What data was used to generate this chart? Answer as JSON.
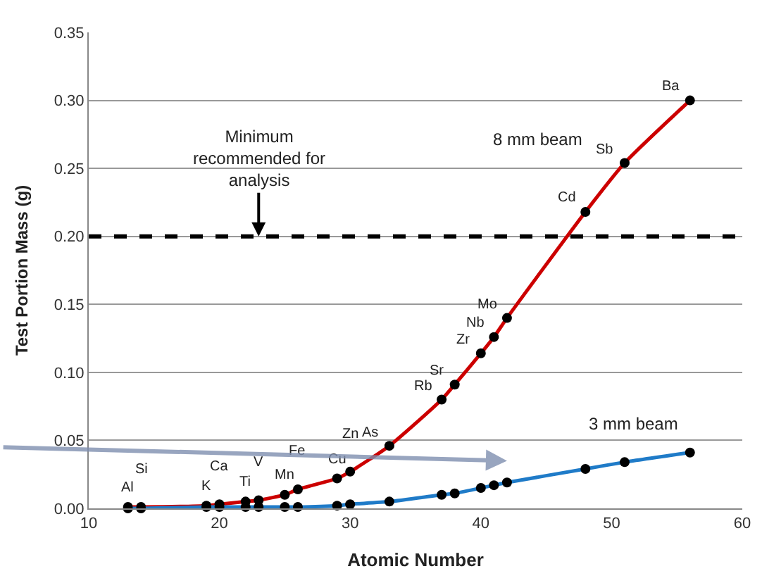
{
  "chart_data": {
    "type": "line",
    "xlabel": "Atomic Number",
    "ylabel": "Test Portion Mass (g)",
    "xlim": [
      10,
      60
    ],
    "xticks": [
      10,
      20,
      30,
      40,
      50,
      60
    ],
    "ylim": [
      0,
      0.35
    ],
    "yticks": [
      {
        "value": 0,
        "label": "0.00"
      },
      {
        "value": 0.05,
        "label": "0.05"
      },
      {
        "value": 0.1,
        "label": "0.10"
      },
      {
        "value": 0.15,
        "label": "0.15"
      },
      {
        "value": 0.2,
        "label": "0.20"
      },
      {
        "value": 0.25,
        "label": "0.25"
      },
      {
        "value": 0.3,
        "label": "0.30"
      },
      {
        "value": 0.35,
        "label": "0.35"
      }
    ],
    "x": [
      13,
      14,
      19,
      20,
      22,
      23,
      25,
      26,
      29,
      30,
      33,
      37,
      38,
      40,
      41,
      42,
      48,
      51,
      56
    ],
    "series": [
      {
        "name": "8 mm beam",
        "color": "#cc0000",
        "values": [
          0.001,
          0.001,
          0.002,
          0.003,
          0.005,
          0.006,
          0.01,
          0.014,
          0.022,
          0.027,
          0.046,
          0.08,
          0.091,
          0.114,
          0.126,
          0.14,
          0.218,
          0.254,
          0.3
        ],
        "value_labels": [
          "Al",
          "Si",
          "K",
          "Ca",
          "Ti",
          "V",
          "Mn",
          "Fe",
          "Cu",
          "Zn",
          "As",
          "Rb",
          "Sr",
          "Zr",
          "Nb",
          "Mo",
          "Cd",
          "Sb",
          "Ba"
        ]
      },
      {
        "name": "3 mm beam",
        "color": "#1f7bc8",
        "values": [
          0.0,
          0.0,
          0.001,
          0.001,
          0.001,
          0.001,
          0.001,
          0.001,
          0.002,
          0.003,
          0.005,
          0.01,
          0.011,
          0.015,
          0.017,
          0.019,
          0.029,
          0.034,
          0.041
        ]
      }
    ],
    "ref_lines": [
      {
        "axis": "y",
        "value": 0.2,
        "color": "#000000",
        "line_style": "dashed"
      }
    ],
    "annotations": [
      {
        "text": "Minimum recommended for analysis",
        "x": 23,
        "y": 0.2
      }
    ],
    "grid": "y",
    "legend": false,
    "marker": "circle",
    "line_style": "solid"
  }
}
